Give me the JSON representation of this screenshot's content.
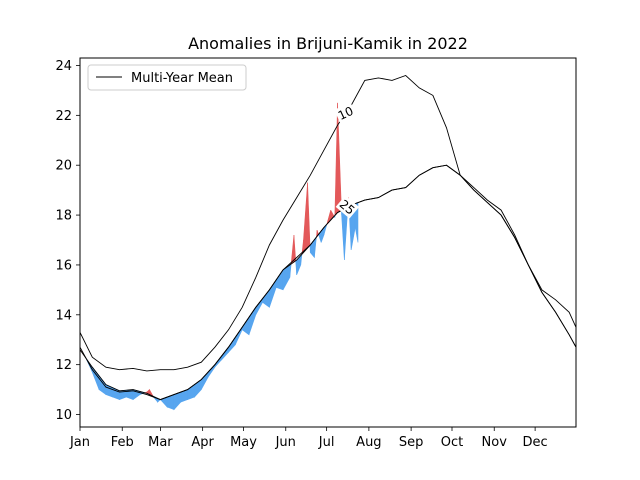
{
  "chart_data": {
    "type": "area",
    "title": "Anomalies in Brijuni-Kamik in 2022",
    "xlabel": "",
    "ylabel": "",
    "xlim": [
      1,
      365
    ],
    "ylim": [
      9.5,
      24.3
    ],
    "x_ticks": [
      {
        "day": 1,
        "label": "Jan"
      },
      {
        "day": 32,
        "label": "Feb"
      },
      {
        "day": 60,
        "label": "Mar"
      },
      {
        "day": 91,
        "label": "Apr"
      },
      {
        "day": 121,
        "label": "May"
      },
      {
        "day": 152,
        "label": "Jun"
      },
      {
        "day": 182,
        "label": "Jul"
      },
      {
        "day": 213,
        "label": "Aug"
      },
      {
        "day": 244,
        "label": "Sep"
      },
      {
        "day": 274,
        "label": "Oct"
      },
      {
        "day": 305,
        "label": "Nov"
      },
      {
        "day": 335,
        "label": "Dec"
      }
    ],
    "y_ticks": [
      10,
      12,
      14,
      16,
      18,
      20,
      22,
      24
    ],
    "legend": {
      "position": "top-left",
      "entries": [
        "Multi-Year Mean"
      ]
    },
    "grid": false,
    "colors": {
      "above": "#e3595a",
      "below": "#57a5ef",
      "line": "#000000"
    },
    "series": [
      {
        "name": "Multi-Year Mean",
        "x": [
          1,
          10,
          20,
          30,
          40,
          50,
          60,
          70,
          80,
          90,
          100,
          110,
          120,
          130,
          140,
          150,
          160,
          170,
          180,
          190,
          200,
          210,
          220,
          230,
          240,
          250,
          260,
          270,
          280,
          290,
          300,
          310,
          320,
          330,
          340,
          350,
          360,
          365
        ],
        "y": [
          12.6,
          11.9,
          11.2,
          10.95,
          11.0,
          10.85,
          10.6,
          10.8,
          11.0,
          11.4,
          12.0,
          12.7,
          13.5,
          14.3,
          15.0,
          15.8,
          16.2,
          16.8,
          17.5,
          18.1,
          18.4,
          18.6,
          18.7,
          19.0,
          19.1,
          19.6,
          19.9,
          20.0,
          19.6,
          19.0,
          18.5,
          18.0,
          17.1,
          16.0,
          14.9,
          14.1,
          13.2,
          12.7
        ]
      },
      {
        "name": "10",
        "x": [
          1,
          10,
          20,
          30,
          40,
          50,
          60,
          70,
          80,
          90,
          100,
          110,
          120,
          130,
          140,
          150,
          160,
          170,
          180,
          190,
          200,
          210,
          220,
          230,
          240,
          250,
          260,
          270,
          280,
          290,
          300,
          310,
          320,
          330,
          340,
          350,
          360,
          365
        ],
        "y": [
          13.3,
          12.3,
          11.9,
          11.8,
          11.85,
          11.75,
          11.8,
          11.8,
          11.9,
          12.1,
          12.7,
          13.4,
          14.3,
          15.5,
          16.8,
          17.8,
          18.7,
          19.6,
          20.6,
          21.6,
          22.4,
          23.4,
          23.5,
          23.4,
          23.6,
          23.1,
          22.8,
          21.5,
          19.6,
          19.1,
          18.6,
          18.2,
          17.2,
          16.0,
          15.0,
          14.6,
          14.1,
          13.5
        ]
      },
      {
        "name": "25",
        "x": [
          1,
          10,
          20,
          30,
          40,
          50,
          60,
          70,
          80,
          90,
          100,
          110,
          120,
          130,
          140,
          150,
          160,
          170,
          180,
          190,
          200,
          210,
          220,
          230,
          240,
          250,
          260,
          270,
          280,
          290,
          300,
          310,
          320,
          330,
          340,
          350,
          360,
          365
        ],
        "y": [
          12.7,
          11.8,
          11.1,
          10.9,
          10.95,
          10.8,
          10.6,
          10.8,
          11.0,
          11.4,
          12.0,
          12.7,
          13.5,
          14.3,
          15.0,
          15.8,
          16.3,
          16.8,
          17.5,
          18.1,
          18.4,
          18.6,
          18.7,
          19.0,
          19.1,
          19.6,
          19.9,
          20.0,
          19.6,
          19.0,
          18.5,
          18.0,
          17.1,
          16.0,
          14.9,
          14.1,
          13.2,
          12.7
        ]
      },
      {
        "name": "2022",
        "x": [
          1,
          5,
          10,
          15,
          20,
          25,
          30,
          35,
          40,
          45,
          50,
          52,
          55,
          58,
          60,
          65,
          70,
          75,
          80,
          85,
          90,
          95,
          100,
          105,
          110,
          115,
          120,
          125,
          130,
          135,
          140,
          145,
          150,
          155,
          158,
          160,
          163,
          165,
          168,
          170,
          173,
          175,
          178,
          180,
          183,
          185,
          188,
          190,
          193,
          195,
          198,
          200,
          203,
          205
        ],
        "y": [
          12.6,
          12.3,
          11.7,
          11.0,
          10.8,
          10.7,
          10.6,
          10.7,
          10.6,
          10.8,
          10.9,
          11.0,
          10.7,
          10.5,
          10.6,
          10.3,
          10.2,
          10.5,
          10.6,
          10.7,
          11.0,
          11.5,
          11.9,
          12.2,
          12.5,
          12.8,
          13.4,
          13.2,
          14.0,
          14.5,
          14.3,
          15.1,
          15.0,
          15.5,
          17.2,
          15.6,
          16.0,
          17.0,
          19.3,
          16.5,
          16.3,
          17.4,
          16.9,
          17.2,
          17.8,
          18.2,
          17.9,
          22.5,
          18.0,
          16.2,
          18.7,
          16.6,
          17.5,
          16.9
        ]
      }
    ],
    "contour_labels": [
      "10",
      "25"
    ]
  }
}
